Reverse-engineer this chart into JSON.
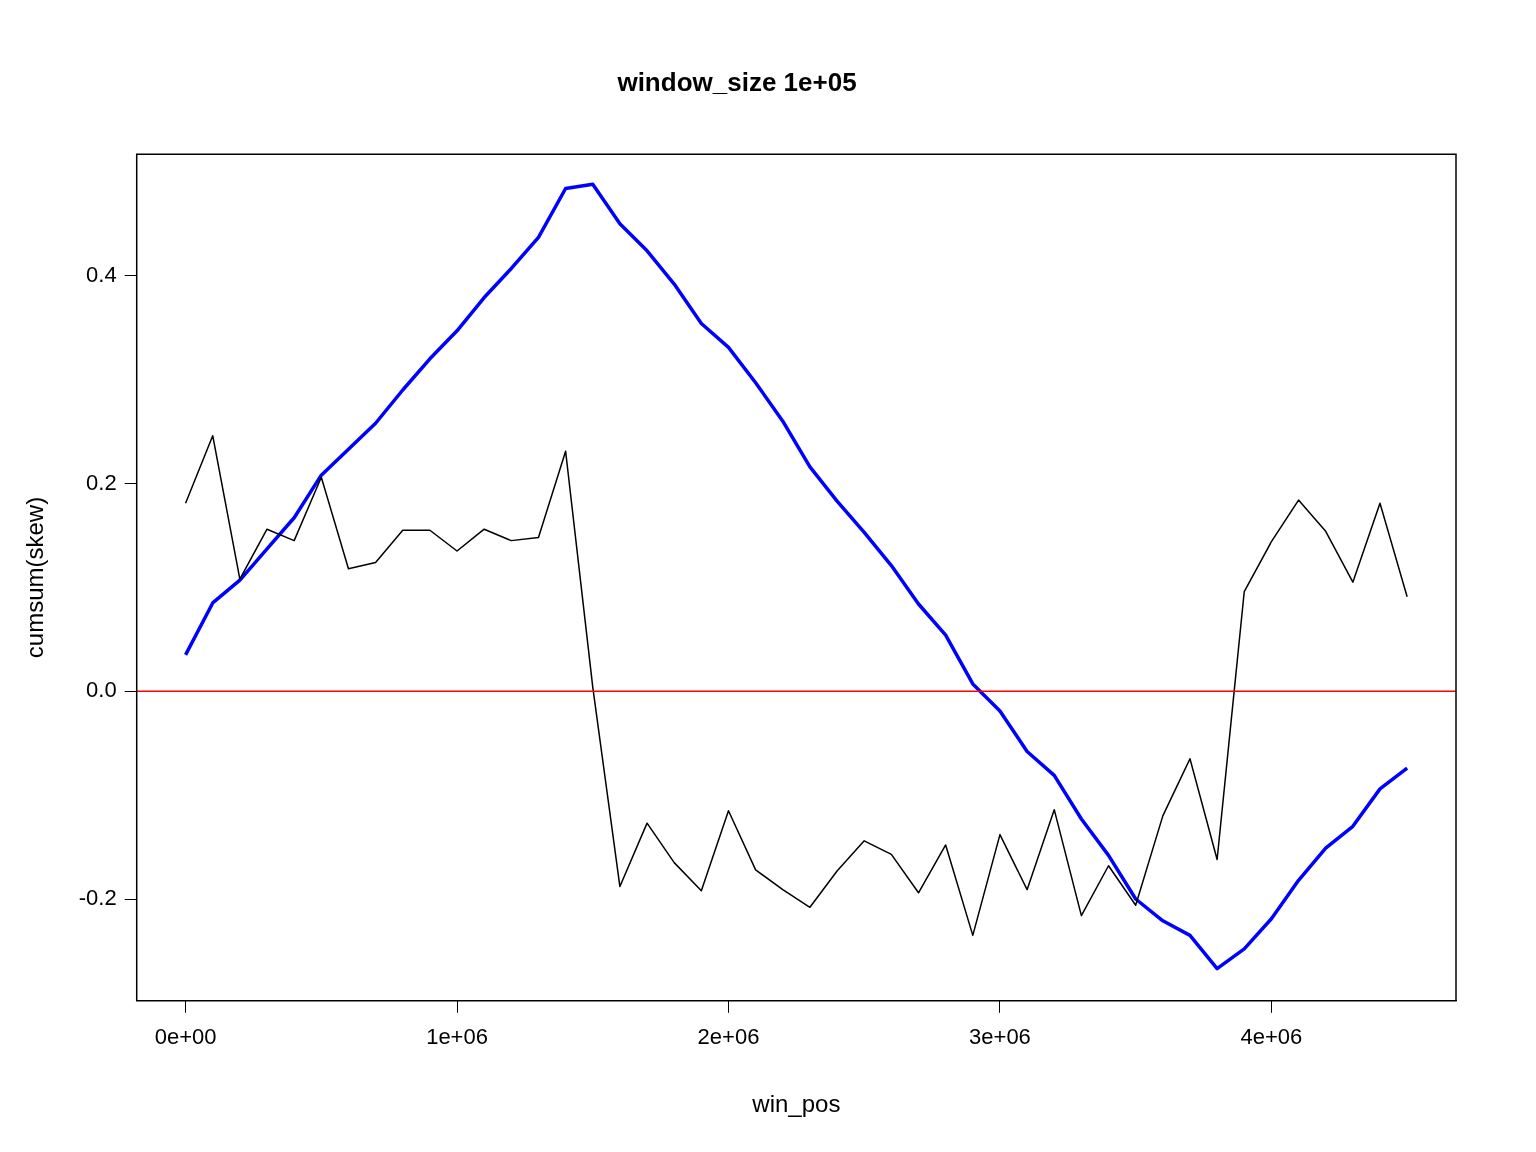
{
  "chart_data": {
    "type": "line",
    "title": "window_size 1e+05",
    "xlabel": "win_pos",
    "ylabel": "cumsum(skew)",
    "x": [
      0,
      100000,
      200000,
      300000,
      400000,
      500000,
      600000,
      700000,
      800000,
      900000,
      1000000,
      1100000,
      1200000,
      1300000,
      1400000,
      1500000,
      1600000,
      1700000,
      1800000,
      1900000,
      2000000,
      2100000,
      2200000,
      2300000,
      2400000,
      2500000,
      2600000,
      2700000,
      2800000,
      2900000,
      3000000,
      3100000,
      3200000,
      3300000,
      3400000,
      3500000,
      3600000,
      3700000,
      3800000,
      3900000,
      4000000,
      4100000,
      4200000,
      4300000,
      4400000,
      4500000
    ],
    "series": [
      {
        "color": "#000000",
        "values": [
          0.181,
          0.246,
          0.108,
          0.156,
          0.145,
          0.206,
          0.118,
          0.124,
          0.155,
          0.155,
          0.135,
          0.156,
          0.145,
          0.148,
          0.231,
          0.004,
          -0.188,
          -0.127,
          -0.165,
          -0.192,
          -0.115,
          -0.172,
          -0.191,
          -0.208,
          -0.173,
          -0.144,
          -0.157,
          -0.194,
          -0.148,
          -0.235,
          -0.138,
          -0.191,
          -0.114,
          -0.216,
          -0.168,
          -0.206,
          -0.12,
          -0.065,
          -0.162,
          0.096,
          0.144,
          0.184,
          0.154,
          0.105,
          0.181,
          0.091
        ]
      },
      {
        "color": "#0000ff",
        "values": [
          0.035,
          0.085,
          0.107,
          0.137,
          0.167,
          0.208,
          0.233,
          0.258,
          0.29,
          0.32,
          0.347,
          0.379,
          0.407,
          0.437,
          0.484,
          0.488,
          0.45,
          0.424,
          0.392,
          0.354,
          0.331,
          0.297,
          0.26,
          0.216,
          0.183,
          0.153,
          0.121,
          0.084,
          0.054,
          0.007,
          -0.019,
          -0.058,
          -0.081,
          -0.123,
          -0.158,
          -0.2,
          -0.221,
          -0.235,
          -0.267,
          -0.248,
          -0.219,
          -0.182,
          -0.151,
          -0.13,
          -0.094,
          -0.074
        ]
      }
    ],
    "xlim": [
      -180000,
      4680000
    ],
    "xticks": [
      {
        "value": 0,
        "label": "0e+00"
      },
      {
        "value": 1000000,
        "label": "1e+06"
      },
      {
        "value": 2000000,
        "label": "2e+06"
      },
      {
        "value": 3000000,
        "label": "3e+06"
      },
      {
        "value": 4000000,
        "label": "4e+06"
      }
    ],
    "ylim": [
      -0.298,
      0.517
    ],
    "yticks": [
      {
        "value": -0.2,
        "label": "-0.2"
      },
      {
        "value": 0,
        "label": "0.0"
      },
      {
        "value": 0.2,
        "label": "0.2"
      },
      {
        "value": 0.4,
        "label": "0.4"
      }
    ],
    "ref_lines": [
      {
        "axis": "y",
        "value": 0,
        "color": "#ff0000"
      }
    ],
    "grid": false,
    "legend": false,
    "marker": "none",
    "line_style": "solid"
  }
}
